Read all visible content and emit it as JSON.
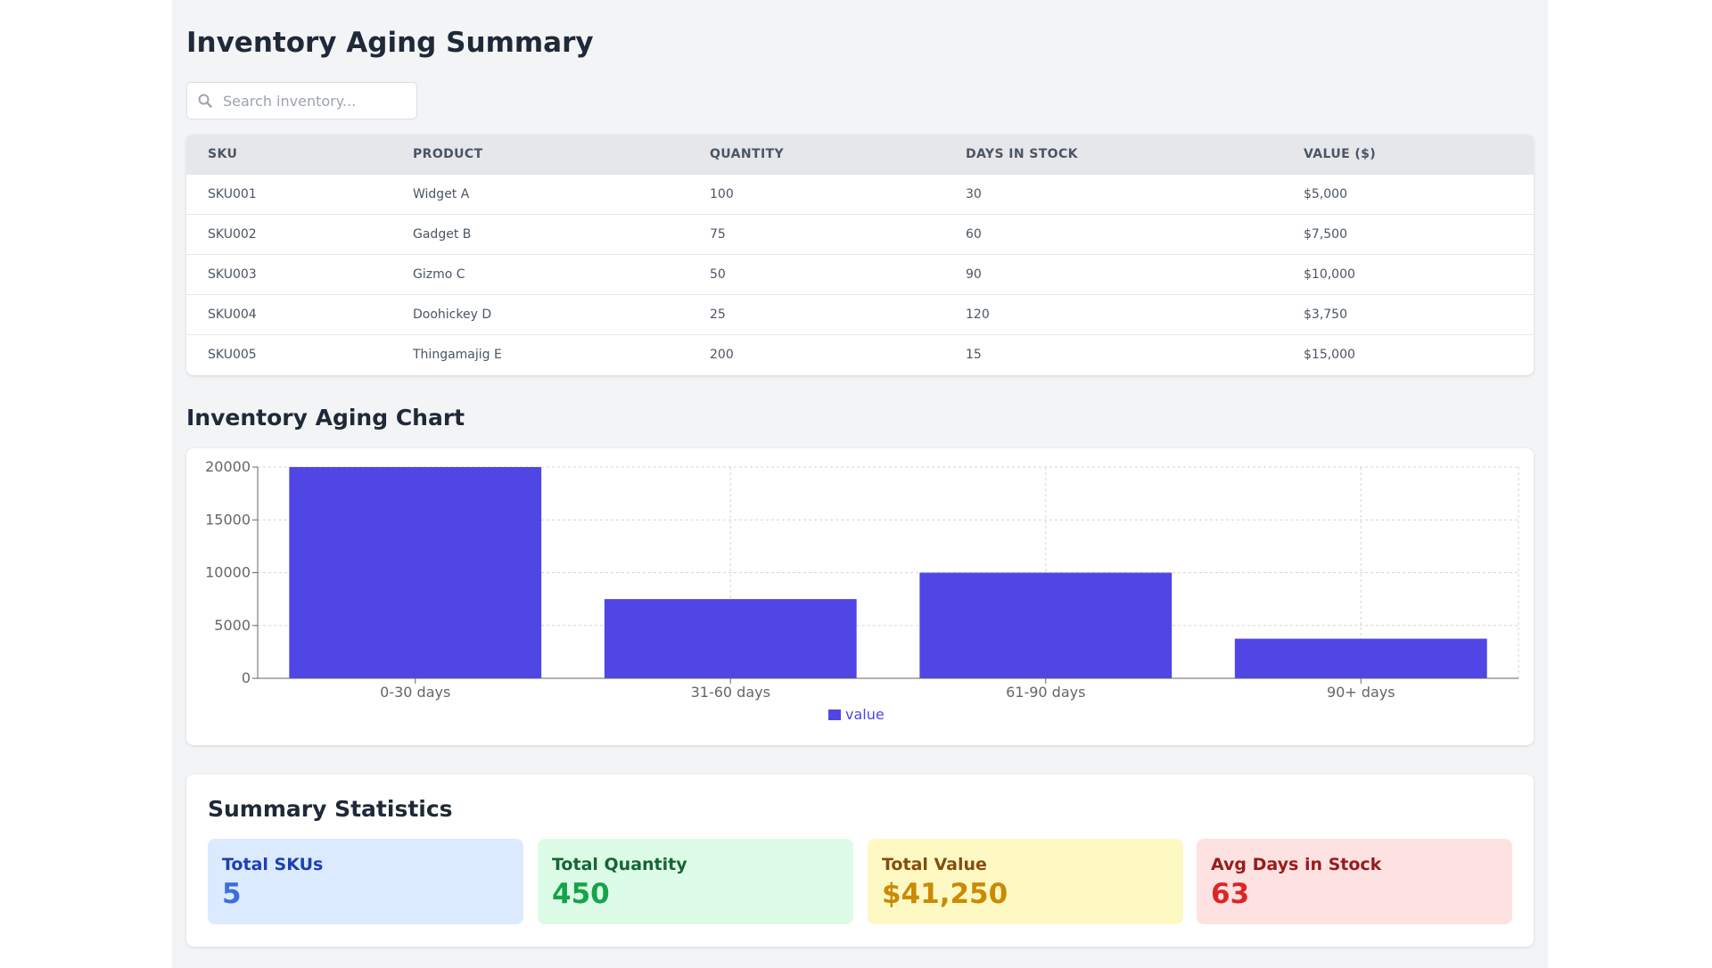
{
  "header": {
    "title": "Inventory Aging Summary"
  },
  "search": {
    "placeholder": "Search inventory...",
    "value": "",
    "icon": "search-icon"
  },
  "table": {
    "columns": [
      "SKU",
      "PRODUCT",
      "QUANTITY",
      "DAYS IN STOCK",
      "VALUE ($)"
    ],
    "rows": [
      [
        "SKU001",
        "Widget A",
        "100",
        "30",
        "$5,000"
      ],
      [
        "SKU002",
        "Gadget B",
        "75",
        "60",
        "$7,500"
      ],
      [
        "SKU003",
        "Gizmo C",
        "50",
        "90",
        "$10,000"
      ],
      [
        "SKU004",
        "Doohickey D",
        "25",
        "120",
        "$3,750"
      ],
      [
        "SKU005",
        "Thingamajig E",
        "200",
        "15",
        "$15,000"
      ]
    ]
  },
  "chart_section": {
    "title": "Inventory Aging Chart"
  },
  "chart_data": {
    "type": "bar",
    "categories": [
      "0-30 days",
      "31-60 days",
      "61-90 days",
      "90+ days"
    ],
    "series": [
      {
        "name": "value",
        "values": [
          20000,
          7500,
          10000,
          3750
        ],
        "color": "#4f46e5"
      }
    ],
    "yticks": [
      0,
      5000,
      10000,
      15000,
      20000
    ],
    "ylim": [
      0,
      20000
    ],
    "grid": true,
    "legend": "bottom-center",
    "title": "",
    "xlabel": "",
    "ylabel": ""
  },
  "summary": {
    "title": "Summary Statistics",
    "stats": [
      {
        "label": "Total SKUs",
        "value": "5",
        "bg": "#dbeafe",
        "label_color": "#1e40af",
        "value_color": "#3b6fd8"
      },
      {
        "label": "Total Quantity",
        "value": "450",
        "bg": "#dcfce7",
        "label_color": "#166534",
        "value_color": "#16a34a"
      },
      {
        "label": "Total Value",
        "value": "$41,250",
        "bg": "#fef9c3",
        "label_color": "#854d0e",
        "value_color": "#ca8a04"
      },
      {
        "label": "Avg Days in Stock",
        "value": "63",
        "bg": "#fee2e2",
        "label_color": "#991b1b",
        "value_color": "#dc2626"
      }
    ]
  }
}
